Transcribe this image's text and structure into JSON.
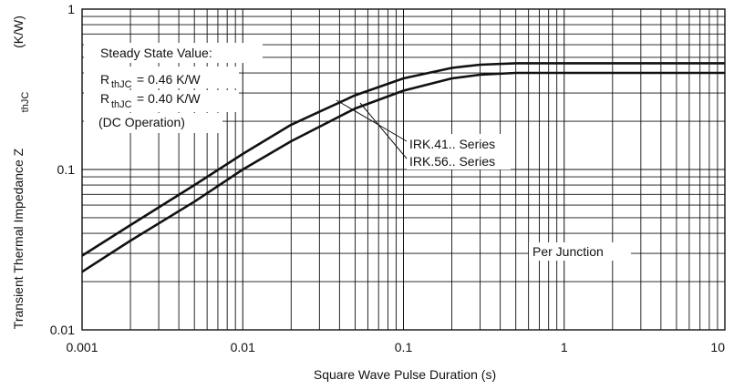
{
  "chart_data": {
    "type": "line",
    "xscale": "log",
    "yscale": "log",
    "xlim": [
      0.001,
      10
    ],
    "ylim": [
      0.01,
      1
    ],
    "grid": true,
    "xlabel": "Square Wave Pulse Duration (s)",
    "ylabel_main": "Transient Thermal Impedance Z",
    "ylabel_sub": "thJC",
    "ylabel_unit": "(K/W)",
    "x_ticks": [
      {
        "value": 0.001,
        "label": "0.001"
      },
      {
        "value": 0.01,
        "label": "0.01"
      },
      {
        "value": 0.1,
        "label": "0.1"
      },
      {
        "value": 1,
        "label": "1"
      },
      {
        "value": 10,
        "label": "10"
      }
    ],
    "y_ticks": [
      {
        "value": 0.01,
        "label": "0.01"
      },
      {
        "value": 0.1,
        "label": "0.1"
      },
      {
        "value": 1,
        "label": "1"
      }
    ],
    "series": [
      {
        "name": "IRK.41.. Series",
        "color": "#111111",
        "x": [
          0.001,
          0.002,
          0.005,
          0.01,
          0.02,
          0.05,
          0.1,
          0.2,
          0.3,
          0.5,
          1,
          2,
          5,
          10
        ],
        "y": [
          0.029,
          0.045,
          0.08,
          0.125,
          0.19,
          0.29,
          0.37,
          0.43,
          0.45,
          0.46,
          0.46,
          0.46,
          0.46,
          0.46
        ]
      },
      {
        "name": "IRK.56.. Series",
        "color": "#111111",
        "x": [
          0.001,
          0.002,
          0.005,
          0.01,
          0.02,
          0.05,
          0.1,
          0.2,
          0.3,
          0.5,
          1,
          2,
          5,
          10
        ],
        "y": [
          0.023,
          0.036,
          0.063,
          0.1,
          0.15,
          0.24,
          0.31,
          0.37,
          0.39,
          0.4,
          0.4,
          0.4,
          0.4,
          0.4
        ]
      }
    ],
    "annotations": {
      "steady_state_title": "Steady State Value:",
      "rth1_prefix": "R",
      "rth1_sub": "thJC",
      "rth1_value": "= 0.46 K/W",
      "rth2_prefix": "R",
      "rth2_sub": "thJC",
      "rth2_value": "= 0.40 K/W",
      "dc_operation": "(DC Operation)",
      "per_junction": "Per Junction"
    }
  }
}
